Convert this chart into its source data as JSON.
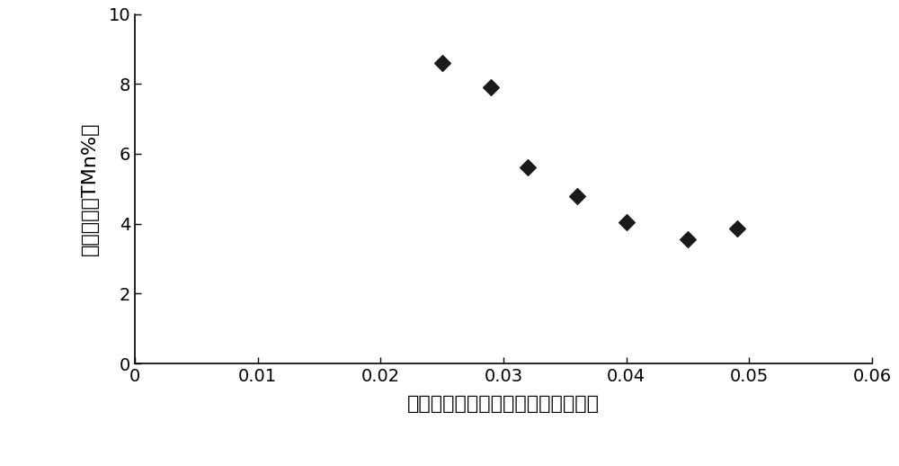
{
  "x_data": [
    0.025,
    0.029,
    0.032,
    0.036,
    0.04,
    0.045,
    0.049
  ],
  "y_data": [
    8.6,
    7.9,
    5.6,
    4.8,
    4.05,
    3.55,
    3.85
  ],
  "xlim": [
    0,
    0.06
  ],
  "ylim": [
    0,
    10
  ],
  "xticks": [
    0,
    0.01,
    0.02,
    0.03,
    0.04,
    0.05,
    0.06
  ],
  "yticks": [
    0,
    2,
    4,
    6,
    8,
    10
  ],
  "xlabel": "硫铁矿加入量（与焙烧锤粉重量比）",
  "ylabel": "锤泥全锤（TMn%）",
  "marker": "D",
  "marker_color": "#1a1a1a",
  "marker_size": 9,
  "background_color": "#ffffff",
  "tick_fontsize": 14,
  "label_fontsize": 16
}
